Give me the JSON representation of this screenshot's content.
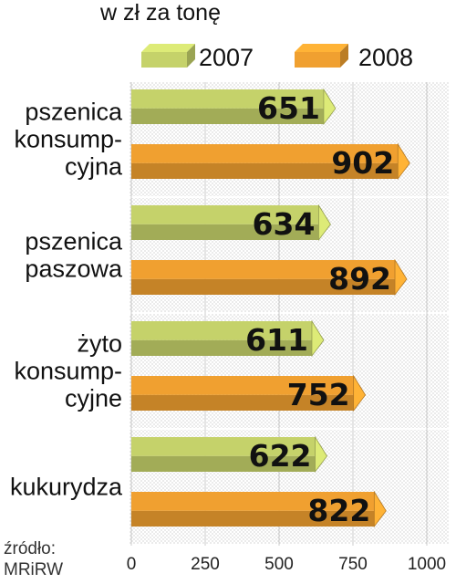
{
  "chart_data": {
    "type": "bar",
    "orientation": "horizontal",
    "unit_label": "w zł za tonę",
    "categories": [
      [
        "pszenica",
        "konsump-",
        "cyjna"
      ],
      [
        "pszenica",
        "paszowa"
      ],
      [
        "żyto",
        "konsump-",
        "cyjne"
      ],
      [
        "kukurydza"
      ]
    ],
    "series": [
      {
        "name": "2007",
        "color": "#c5d26a",
        "values": [
          651,
          634,
          611,
          622
        ]
      },
      {
        "name": "2008",
        "color": "#f0a030",
        "values": [
          902,
          892,
          752,
          822
        ]
      }
    ],
    "xlim": [
      0,
      1000
    ],
    "xticks": [
      0,
      250,
      500,
      750,
      1000
    ],
    "grid": true,
    "legend": "top",
    "source": [
      "źródło:",
      "MRiRW"
    ]
  }
}
